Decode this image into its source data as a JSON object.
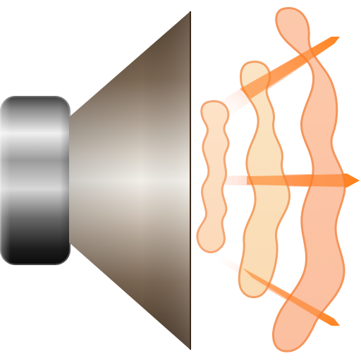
{
  "icon": {
    "name": "speaker-volume-icon",
    "colors": {
      "magnet_light": "#e8e8e8",
      "magnet_mid": "#8a8a8a",
      "magnet_dark": "#1a1a1a",
      "cone_dark": "#5a4634",
      "cone_light": "#efece7",
      "wave_fill_light": "#fde1c4",
      "wave_fill_mid": "#fbbf94",
      "wave_stroke": "#f6924f",
      "ray_orange": "#ff7a00"
    }
  }
}
